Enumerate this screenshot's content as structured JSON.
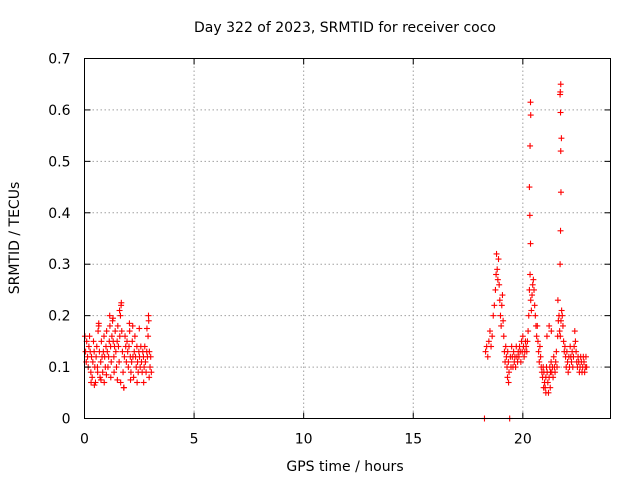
{
  "chart_data": {
    "type": "scatter",
    "title": "Day 322 of 2023, SRMTID for receiver coco",
    "xlabel": "GPS time / hours",
    "ylabel": "SRMTID / TECUs",
    "xlim": [
      0,
      24
    ],
    "ylim": [
      0,
      0.7
    ],
    "x_ticks": [
      0,
      5,
      10,
      15,
      20
    ],
    "y_ticks": [
      0,
      0.1,
      0.2,
      0.3,
      0.4,
      0.5,
      0.6,
      0.7
    ],
    "x_tick_labels": [
      "0",
      "5",
      "10",
      "15",
      "20"
    ],
    "y_tick_labels": [
      "0",
      "0.1",
      "0.2",
      "0.3",
      "0.4",
      "0.5",
      "0.6",
      "0.7"
    ],
    "grid": true,
    "marker": "+",
    "series": [
      {
        "name": "SRMTID",
        "color": "#ff0000",
        "points": [
          [
            0.02,
            0.16
          ],
          [
            0.05,
            0.13
          ],
          [
            0.08,
            0.11
          ],
          [
            0.1,
            0.15
          ],
          [
            0.14,
            0.12
          ],
          [
            0.17,
            0.1
          ],
          [
            0.2,
            0.14
          ],
          [
            0.23,
            0.16
          ],
          [
            0.26,
            0.13
          ],
          [
            0.29,
            0.09
          ],
          [
            0.32,
            0.12
          ],
          [
            0.35,
            0.08
          ],
          [
            0.38,
            0.11
          ],
          [
            0.41,
            0.15
          ],
          [
            0.44,
            0.13
          ],
          [
            0.47,
            0.1
          ],
          [
            0.5,
            0.07
          ],
          [
            0.53,
            0.12
          ],
          [
            0.56,
            0.14
          ],
          [
            0.59,
            0.1
          ],
          [
            0.62,
            0.17
          ],
          [
            0.65,
            0.18
          ],
          [
            0.68,
            0.13
          ],
          [
            0.71,
            0.08
          ],
          [
            0.74,
            0.11
          ],
          [
            0.77,
            0.15
          ],
          [
            0.8,
            0.12
          ],
          [
            0.83,
            0.09
          ],
          [
            0.86,
            0.13
          ],
          [
            0.89,
            0.16
          ],
          [
            0.92,
            0.12
          ],
          [
            0.95,
            0.1
          ],
          [
            0.98,
            0.14
          ],
          [
            1.01,
            0.17
          ],
          [
            1.04,
            0.13
          ],
          [
            1.07,
            0.1
          ],
          [
            1.1,
            0.12
          ],
          [
            1.13,
            0.15
          ],
          [
            1.16,
            0.18
          ],
          [
            1.19,
            0.14
          ],
          [
            1.22,
            0.11
          ],
          [
            1.25,
            0.16
          ],
          [
            1.28,
            0.19
          ],
          [
            1.31,
            0.15
          ],
          [
            1.34,
            0.12
          ],
          [
            1.37,
            0.14
          ],
          [
            1.4,
            0.17
          ],
          [
            1.43,
            0.13
          ],
          [
            1.46,
            0.1
          ],
          [
            1.49,
            0.15
          ],
          [
            1.52,
            0.18
          ],
          [
            1.55,
            0.14
          ],
          [
            1.58,
            0.11
          ],
          [
            1.61,
            0.16
          ],
          [
            1.64,
            0.2
          ],
          [
            1.67,
            0.22
          ],
          [
            1.7,
            0.17
          ],
          [
            1.73,
            0.13
          ],
          [
            1.76,
            0.09
          ],
          [
            1.79,
            0.06
          ],
          [
            1.82,
            0.12
          ],
          [
            1.85,
            0.16
          ],
          [
            1.88,
            0.14
          ],
          [
            1.91,
            0.11
          ],
          [
            1.94,
            0.15
          ],
          [
            1.97,
            0.13
          ],
          [
            2.0,
            0.1
          ],
          [
            2.03,
            0.14
          ],
          [
            2.06,
            0.17
          ],
          [
            2.09,
            0.12
          ],
          [
            2.12,
            0.09
          ],
          [
            2.15,
            0.11
          ],
          [
            2.18,
            0.15
          ],
          [
            2.21,
            0.12
          ],
          [
            2.24,
            0.08
          ],
          [
            2.27,
            0.13
          ],
          [
            2.3,
            0.16
          ],
          [
            2.33,
            0.12
          ],
          [
            2.36,
            0.1
          ],
          [
            2.39,
            0.14
          ],
          [
            2.42,
            0.11
          ],
          [
            2.45,
            0.09
          ],
          [
            2.48,
            0.13
          ],
          [
            2.51,
            0.12
          ],
          [
            2.54,
            0.1
          ],
          [
            2.57,
            0.14
          ],
          [
            2.6,
            0.11
          ],
          [
            2.63,
            0.09
          ],
          [
            2.66,
            0.13
          ],
          [
            2.69,
            0.12
          ],
          [
            2.72,
            0.1
          ],
          [
            2.75,
            0.14
          ],
          [
            2.78,
            0.11
          ],
          [
            2.81,
            0.09
          ],
          [
            2.84,
            0.13
          ],
          [
            2.87,
            0.12
          ],
          [
            2.9,
            0.16
          ],
          [
            2.93,
            0.19
          ],
          [
            2.96,
            0.13
          ],
          [
            2.99,
            0.1
          ],
          [
            3.02,
            0.12
          ],
          [
            3.05,
            0.09
          ],
          [
            0.3,
            0.07
          ],
          [
            0.45,
            0.065
          ],
          [
            0.6,
            0.09
          ],
          [
            0.75,
            0.075
          ],
          [
            0.9,
            0.07
          ],
          [
            1.0,
            0.085
          ],
          [
            1.2,
            0.08
          ],
          [
            1.35,
            0.09
          ],
          [
            1.5,
            0.075
          ],
          [
            1.65,
            0.07
          ],
          [
            1.8,
            0.06
          ],
          [
            2.1,
            0.075
          ],
          [
            2.4,
            0.07
          ],
          [
            2.7,
            0.07
          ],
          [
            2.95,
            0.08
          ],
          [
            0.65,
            0.185
          ],
          [
            1.15,
            0.2
          ],
          [
            1.3,
            0.195
          ],
          [
            1.6,
            0.21
          ],
          [
            1.68,
            0.225
          ],
          [
            2.05,
            0.185
          ],
          [
            2.2,
            0.18
          ],
          [
            2.5,
            0.175
          ],
          [
            2.85,
            0.175
          ],
          [
            2.92,
            0.2
          ],
          [
            18.25,
            0.0
          ],
          [
            18.3,
            0.13
          ],
          [
            18.35,
            0.14
          ],
          [
            18.4,
            0.12
          ],
          [
            18.45,
            0.15
          ],
          [
            18.5,
            0.17
          ],
          [
            18.55,
            0.14
          ],
          [
            18.6,
            0.16
          ],
          [
            18.65,
            0.2
          ],
          [
            18.7,
            0.22
          ],
          [
            18.75,
            0.25
          ],
          [
            18.78,
            0.28
          ],
          [
            18.8,
            0.32
          ],
          [
            18.83,
            0.29
          ],
          [
            18.86,
            0.27
          ],
          [
            18.89,
            0.31
          ],
          [
            18.92,
            0.26
          ],
          [
            18.95,
            0.23
          ],
          [
            18.98,
            0.2
          ],
          [
            19.01,
            0.18
          ],
          [
            19.04,
            0.22
          ],
          [
            19.07,
            0.24
          ],
          [
            19.1,
            0.19
          ],
          [
            19.13,
            0.16
          ],
          [
            19.16,
            0.13
          ],
          [
            19.19,
            0.11
          ],
          [
            19.22,
            0.14
          ],
          [
            19.25,
            0.12
          ],
          [
            19.28,
            0.1
          ],
          [
            19.31,
            0.13
          ],
          [
            19.34,
            0.11
          ],
          [
            19.37,
            0.09
          ],
          [
            19.4,
            0.0
          ],
          [
            19.43,
            0.12
          ],
          [
            19.46,
            0.1
          ],
          [
            19.49,
            0.14
          ],
          [
            19.52,
            0.12
          ],
          [
            19.55,
            0.1
          ],
          [
            19.58,
            0.13
          ],
          [
            19.61,
            0.11
          ],
          [
            19.64,
            0.12
          ],
          [
            19.67,
            0.1
          ],
          [
            19.7,
            0.14
          ],
          [
            19.73,
            0.12
          ],
          [
            19.76,
            0.11
          ],
          [
            19.79,
            0.13
          ],
          [
            19.82,
            0.12
          ],
          [
            19.85,
            0.14
          ],
          [
            19.88,
            0.13
          ],
          [
            19.91,
            0.11
          ],
          [
            19.94,
            0.15
          ],
          [
            19.97,
            0.13
          ],
          [
            20.0,
            0.16
          ],
          [
            20.03,
            0.14
          ],
          [
            20.06,
            0.12
          ],
          [
            20.09,
            0.13
          ],
          [
            20.12,
            0.15
          ],
          [
            20.15,
            0.14
          ],
          [
            20.18,
            0.13
          ],
          [
            20.21,
            0.15
          ],
          [
            20.24,
            0.17
          ],
          [
            20.27,
            0.2
          ],
          [
            20.3,
            0.25
          ],
          [
            20.33,
            0.28
          ],
          [
            20.36,
            0.23
          ],
          [
            20.39,
            0.21
          ],
          [
            20.42,
            0.24
          ],
          [
            20.45,
            0.26
          ],
          [
            20.48,
            0.27
          ],
          [
            20.51,
            0.25
          ],
          [
            20.54,
            0.22
          ],
          [
            20.57,
            0.2
          ],
          [
            20.6,
            0.18
          ],
          [
            20.63,
            0.16
          ],
          [
            20.66,
            0.18
          ],
          [
            20.69,
            0.15
          ],
          [
            20.72,
            0.13
          ],
          [
            20.75,
            0.11
          ],
          [
            20.78,
            0.14
          ],
          [
            20.81,
            0.12
          ],
          [
            20.84,
            0.1
          ],
          [
            20.87,
            0.09
          ],
          [
            20.9,
            0.08
          ],
          [
            20.93,
            0.1
          ],
          [
            20.96,
            0.09
          ],
          [
            20.99,
            0.07
          ],
          [
            21.02,
            0.06
          ],
          [
            21.05,
            0.08
          ],
          [
            21.08,
            0.1
          ],
          [
            21.11,
            0.09
          ],
          [
            21.14,
            0.07
          ],
          [
            21.17,
            0.05
          ],
          [
            21.2,
            0.08
          ],
          [
            21.23,
            0.1
          ],
          [
            21.26,
            0.09
          ],
          [
            21.29,
            0.11
          ],
          [
            21.32,
            0.09
          ],
          [
            21.35,
            0.1
          ],
          [
            21.38,
            0.08
          ],
          [
            21.41,
            0.12
          ],
          [
            21.44,
            0.1
          ],
          [
            21.47,
            0.09
          ],
          [
            21.5,
            0.11
          ],
          [
            21.53,
            0.13
          ],
          [
            21.56,
            0.1
          ],
          [
            21.59,
            0.16
          ],
          [
            21.62,
            0.19
          ],
          [
            21.65,
            0.2
          ],
          [
            21.68,
            0.17
          ],
          [
            21.71,
            0.16
          ],
          [
            21.74,
            0.19
          ],
          [
            21.77,
            0.21
          ],
          [
            21.8,
            0.2
          ],
          [
            21.83,
            0.18
          ],
          [
            21.86,
            0.15
          ],
          [
            21.89,
            0.13
          ],
          [
            21.92,
            0.14
          ],
          [
            21.95,
            0.12
          ],
          [
            21.98,
            0.1
          ],
          [
            22.01,
            0.13
          ],
          [
            22.04,
            0.11
          ],
          [
            22.07,
            0.09
          ],
          [
            22.1,
            0.12
          ],
          [
            22.13,
            0.1
          ],
          [
            22.16,
            0.14
          ],
          [
            22.19,
            0.12
          ],
          [
            22.22,
            0.11
          ],
          [
            22.25,
            0.13
          ],
          [
            22.28,
            0.1
          ],
          [
            22.31,
            0.12
          ],
          [
            22.34,
            0.14
          ],
          [
            22.37,
            0.17
          ],
          [
            22.4,
            0.15
          ],
          [
            22.43,
            0.13
          ],
          [
            22.46,
            0.11
          ],
          [
            22.49,
            0.1
          ],
          [
            22.52,
            0.12
          ],
          [
            22.55,
            0.11
          ],
          [
            22.58,
            0.09
          ],
          [
            22.61,
            0.1
          ],
          [
            22.64,
            0.12
          ],
          [
            22.67,
            0.11
          ],
          [
            22.7,
            0.09
          ],
          [
            22.73,
            0.1
          ],
          [
            22.76,
            0.12
          ],
          [
            22.79,
            0.11
          ],
          [
            22.82,
            0.09
          ],
          [
            22.85,
            0.1
          ],
          [
            22.88,
            0.12
          ],
          [
            22.91,
            0.1
          ],
          [
            20.35,
            0.34
          ],
          [
            20.32,
            0.395
          ],
          [
            20.3,
            0.45
          ],
          [
            20.33,
            0.53
          ],
          [
            20.36,
            0.59
          ],
          [
            20.35,
            0.615
          ],
          [
            21.7,
            0.3
          ],
          [
            21.72,
            0.365
          ],
          [
            21.74,
            0.44
          ],
          [
            21.73,
            0.52
          ],
          [
            21.76,
            0.545
          ],
          [
            21.72,
            0.595
          ],
          [
            21.7,
            0.63
          ],
          [
            21.71,
            0.635
          ],
          [
            21.73,
            0.65
          ],
          [
            21.1,
            0.16
          ],
          [
            21.2,
            0.18
          ],
          [
            21.3,
            0.17
          ],
          [
            21.6,
            0.23
          ],
          [
            19.3,
            0.08
          ],
          [
            19.35,
            0.07
          ],
          [
            20.95,
            0.06
          ],
          [
            21.05,
            0.05
          ],
          [
            21.25,
            0.06
          ]
        ]
      }
    ]
  }
}
